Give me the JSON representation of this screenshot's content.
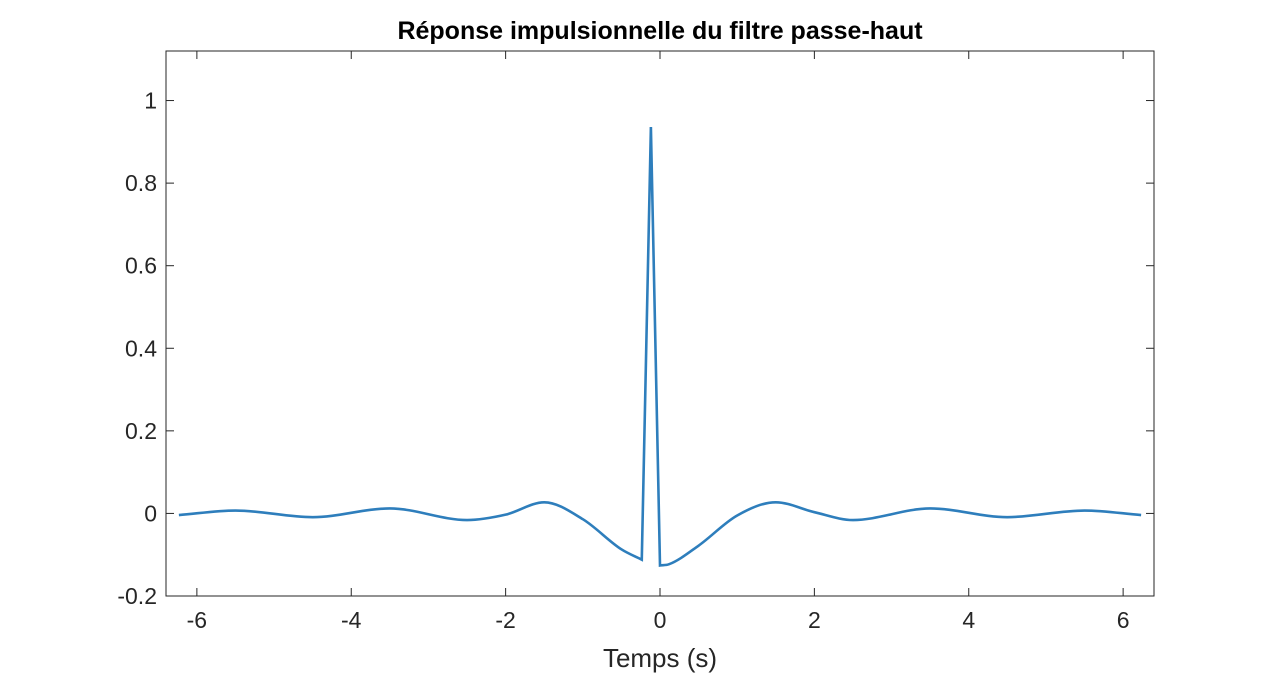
{
  "chart_data": {
    "type": "line",
    "title": "Réponse impulsionnelle du filtre passe-haut",
    "xlabel": "Temps (s)",
    "ylabel": "",
    "xlim": [
      -6.4,
      6.4
    ],
    "ylim": [
      -0.2,
      1.12
    ],
    "x_ticks": [
      -6,
      -4,
      -2,
      0,
      2,
      4,
      6
    ],
    "x_tick_labels": [
      "-6",
      "-4",
      "-2",
      "0",
      "2",
      "4",
      "6"
    ],
    "y_ticks": [
      -0.2,
      0,
      0.2,
      0.4,
      0.6,
      0.8,
      1
    ],
    "y_tick_labels": [
      "-0.2",
      "0",
      "0.2",
      "0.4",
      "0.6",
      "0.8",
      "1"
    ],
    "grid": false,
    "box": true,
    "series": [
      {
        "color": "#2e7ebc",
        "x": [
          -6.233,
          -5.5,
          -4.5,
          -3.5,
          -2.5,
          -2.0,
          -1.5,
          -1.0,
          -0.5,
          -0.236,
          -0.118,
          0.0,
          0.118,
          0.5,
          1.0,
          1.5,
          2.0,
          2.5,
          3.5,
          4.5,
          5.5,
          6.233
        ],
        "y": [
          -0.004,
          0.007,
          -0.009,
          0.012,
          -0.016,
          -0.003,
          0.027,
          -0.014,
          -0.087,
          -0.112,
          0.936,
          -0.126,
          -0.123,
          -0.078,
          -0.005,
          0.027,
          0.003,
          -0.016,
          0.012,
          -0.009,
          0.007,
          -0.004
        ]
      }
    ]
  }
}
